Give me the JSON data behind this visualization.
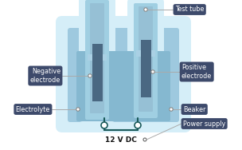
{
  "bg_color": "#ffffff",
  "beaker_outer": "#c5e4f0",
  "beaker_fill": "#9ec9df",
  "beaker_inner_fill": "#85b8d0",
  "tube_outer": "#b8dcea",
  "tube_fill": "#a0cfe2",
  "tube_inner": "#8ec0d5",
  "electrode_fill": "#4a6882",
  "electrode_dark": "#3d5a72",
  "liquid_level": "#7aafc4",
  "wire_color": "#1a5a5a",
  "label_bg": "#3d4a6b",
  "label_fg": "#ffffff",
  "line_color": "#aaaaaa",
  "labels": {
    "test_tube": "Test tube",
    "negative": "Negative\nelectrode",
    "positive": "Positive\nelectrode",
    "electrolyte": "Electrolyte",
    "beaker": "Beaker",
    "power_supply": "Power supply",
    "voltage": "12 V DC"
  },
  "figsize": [
    3.04,
    1.88
  ],
  "dpi": 100
}
